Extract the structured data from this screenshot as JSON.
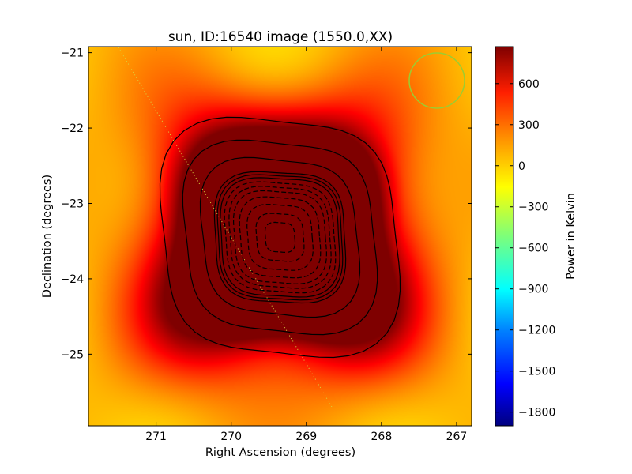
{
  "chart_data": {
    "type": "heatmap",
    "title": "sun, ID:16540 image (1550.0,XX)",
    "xlabel": "Right Ascension (degrees)",
    "ylabel": "Declination (degrees)",
    "xlim": [
      271.9,
      266.8
    ],
    "ylim": [
      -25.95,
      -20.92
    ],
    "x_ticks": [
      271,
      270,
      269,
      268,
      267
    ],
    "x_tick_labels": [
      "271",
      "270",
      "269",
      "268",
      "267"
    ],
    "y_ticks": [
      -21,
      -22,
      -23,
      -24,
      -25
    ],
    "y_tick_labels": [
      "−21",
      "−22",
      "−23",
      "−24",
      "−25"
    ],
    "colorbar": {
      "label": "Power in Kelvin",
      "range": [
        -1900,
        870
      ],
      "ticks": [
        600,
        300,
        0,
        -300,
        -600,
        -900,
        -1200,
        -1500,
        -1800
      ],
      "tick_labels": [
        "600",
        "300",
        "0",
        "−300",
        "−600",
        "−900",
        "−1200",
        "−1500",
        "−1800"
      ],
      "colormap": "jet"
    },
    "sources": {
      "center_ra": 269.35,
      "center_dec": -23.45,
      "min_value": -1900,
      "max_value": 850,
      "background_level": 0
    },
    "beam": {
      "ra": 267.28,
      "dec": -21.4
    },
    "grid": false,
    "colors": {
      "contour": "#000000",
      "beam": "#9acd32",
      "path": "#c8c832"
    }
  }
}
